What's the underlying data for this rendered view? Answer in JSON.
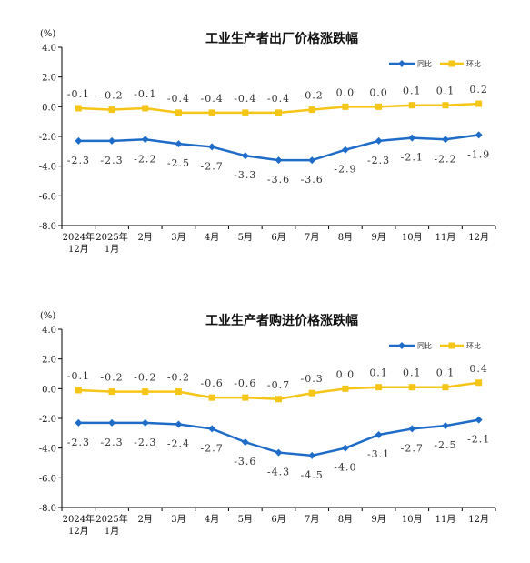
{
  "colors": {
    "yoy": "#1f6cc8",
    "mom": "#f5c518",
    "axis": "#000000"
  },
  "chart_data": [
    {
      "type": "line",
      "title": "工业生产者出厂价格涨跌幅",
      "ylabel": "(%)",
      "ylim": [
        -8.0,
        4.0
      ],
      "yticks": [
        "4.0",
        "2.0",
        "0.0",
        "-2.0",
        "-4.0",
        "-6.0",
        "-8.0"
      ],
      "categories": [
        "2024年12月",
        "2025年1月",
        "2月",
        "3月",
        "4月",
        "5月",
        "6月",
        "7月",
        "8月",
        "9月",
        "10月",
        "11月",
        "12月"
      ],
      "series": [
        {
          "name": "同比",
          "values": [
            -2.3,
            -2.3,
            -2.2,
            -2.5,
            -2.7,
            -3.3,
            -3.6,
            -3.6,
            -2.9,
            -2.3,
            -2.1,
            -2.2,
            -1.9
          ]
        },
        {
          "name": "环比",
          "values": [
            -0.1,
            -0.2,
            -0.1,
            -0.4,
            -0.4,
            -0.4,
            -0.4,
            -0.2,
            0.0,
            0.0,
            0.1,
            0.1,
            0.2
          ]
        }
      ]
    },
    {
      "type": "line",
      "title": "工业生产者购进价格涨跌幅",
      "ylabel": "(%)",
      "ylim": [
        -8.0,
        4.0
      ],
      "yticks": [
        "4.0",
        "2.0",
        "0.0",
        "-2.0",
        "-4.0",
        "-6.0",
        "-8.0"
      ],
      "categories": [
        "2024年12月",
        "2025年1月",
        "2月",
        "3月",
        "4月",
        "5月",
        "6月",
        "7月",
        "8月",
        "9月",
        "10月",
        "11月",
        "12月"
      ],
      "series": [
        {
          "name": "同比",
          "values": [
            -2.3,
            -2.3,
            -2.3,
            -2.4,
            -2.7,
            -3.6,
            -4.3,
            -4.5,
            -4.0,
            -3.1,
            -2.7,
            -2.5,
            -2.1
          ]
        },
        {
          "name": "环比",
          "values": [
            -0.1,
            -0.2,
            -0.2,
            -0.2,
            -0.6,
            -0.6,
            -0.7,
            -0.3,
            0.0,
            0.1,
            0.1,
            0.1,
            0.4
          ]
        }
      ]
    }
  ]
}
